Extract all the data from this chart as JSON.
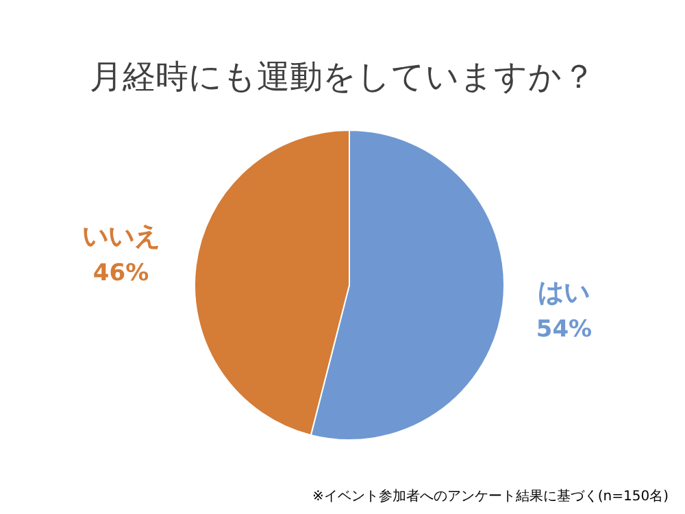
{
  "chart_data": {
    "type": "pie",
    "title": "月経時にも運動をしていますか？",
    "categories": [
      "はい",
      "いいえ"
    ],
    "values": [
      54,
      46
    ],
    "value_labels": [
      "54%",
      "46%"
    ],
    "colors": [
      "#6f98d2",
      "#d57c37"
    ],
    "legend": false,
    "annotations": [
      "※イベント参加者へのアンケート結果に基づく(n=150名)"
    ]
  }
}
